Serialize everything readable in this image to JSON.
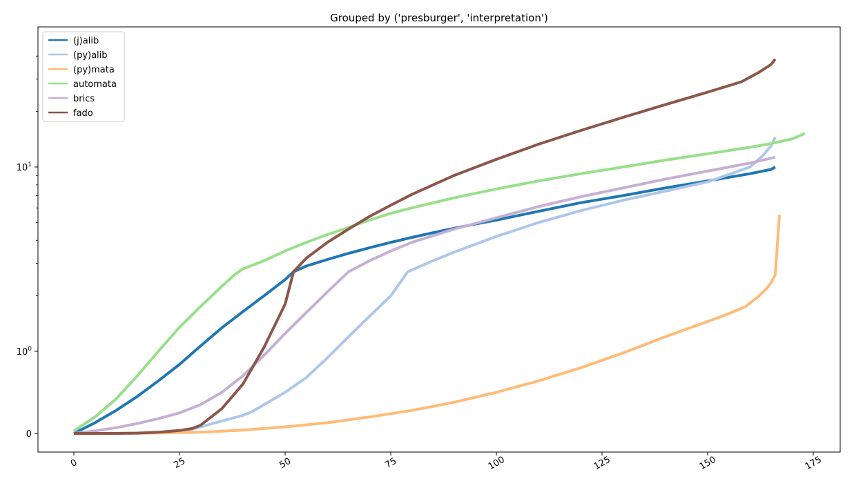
{
  "chart_data": {
    "type": "line",
    "title": "Grouped by ('presburger', 'interpretation')",
    "xlabel": "",
    "ylabel": "",
    "xlim": [
      -8.5,
      182
    ],
    "xticks": [
      0,
      25,
      50,
      75,
      100,
      125,
      150,
      175
    ],
    "yscale": "symlog",
    "yticks": [
      {
        "value": 0,
        "base": "0",
        "exp": ""
      },
      {
        "value": 1,
        "base": "10",
        "exp": "0"
      },
      {
        "value": 10,
        "base": "10",
        "exp": "1"
      }
    ],
    "grid": false,
    "legend_position": "top-left",
    "series": [
      {
        "name": "(j)alib",
        "color": "#1f77b4",
        "x": [
          0,
          5,
          10,
          15,
          20,
          25,
          30,
          35,
          40,
          45,
          50,
          52,
          55,
          60,
          65,
          70,
          75,
          80,
          85,
          90,
          95,
          100,
          110,
          120,
          130,
          140,
          150,
          160,
          165,
          166
        ],
        "y": [
          0,
          0.13,
          0.28,
          0.45,
          0.64,
          0.84,
          1.07,
          1.34,
          1.64,
          2.0,
          2.45,
          2.7,
          2.9,
          3.15,
          3.4,
          3.65,
          3.9,
          4.15,
          4.4,
          4.65,
          4.9,
          5.15,
          5.75,
          6.4,
          7.0,
          7.7,
          8.4,
          9.2,
          9.7,
          10.0
        ]
      },
      {
        "name": "(py)alib",
        "color": "#aec7e8",
        "x": [
          0,
          10,
          20,
          25,
          28,
          30,
          35,
          40,
          42,
          45,
          50,
          55,
          60,
          65,
          70,
          75,
          79,
          85,
          90,
          100,
          110,
          120,
          130,
          140,
          150,
          160,
          163,
          165,
          166
        ],
        "y": [
          0,
          0,
          0.01,
          0.03,
          0.05,
          0.08,
          0.15,
          0.22,
          0.26,
          0.35,
          0.5,
          0.68,
          0.92,
          1.2,
          1.55,
          2.0,
          2.7,
          3.1,
          3.45,
          4.2,
          5.0,
          5.8,
          6.6,
          7.4,
          8.3,
          10.0,
          11.5,
          13.0,
          14.5
        ]
      },
      {
        "name": "(py)mata",
        "color": "#ffbb78",
        "x": [
          0,
          10,
          20,
          30,
          40,
          50,
          60,
          70,
          80,
          90,
          100,
          110,
          120,
          130,
          140,
          150,
          155,
          159,
          162,
          164,
          165,
          166,
          167
        ],
        "y": [
          0,
          0,
          0.005,
          0.015,
          0.04,
          0.08,
          0.13,
          0.2,
          0.28,
          0.38,
          0.5,
          0.64,
          0.8,
          0.98,
          1.2,
          1.45,
          1.6,
          1.75,
          1.98,
          2.2,
          2.35,
          2.6,
          5.5
        ]
      },
      {
        "name": "automata",
        "color": "#98df8a",
        "x": [
          0,
          5,
          10,
          15,
          20,
          25,
          30,
          35,
          38,
          40,
          45,
          50,
          55,
          60,
          65,
          70,
          75,
          80,
          90,
          100,
          110,
          120,
          130,
          140,
          150,
          160,
          165,
          170,
          173
        ],
        "y": [
          0.03,
          0.2,
          0.42,
          0.7,
          1.0,
          1.35,
          1.75,
          2.25,
          2.6,
          2.8,
          3.1,
          3.5,
          3.9,
          4.3,
          4.7,
          5.15,
          5.6,
          6.0,
          6.8,
          7.6,
          8.4,
          9.2,
          10.0,
          10.9,
          11.8,
          12.8,
          13.4,
          14.2,
          15.2
        ]
      },
      {
        "name": "brics",
        "color": "#c5b0d5",
        "x": [
          0,
          5,
          10,
          15,
          20,
          25,
          30,
          35,
          40,
          45,
          50,
          55,
          60,
          65,
          70,
          75,
          80,
          90,
          100,
          110,
          120,
          130,
          140,
          150,
          160,
          166
        ],
        "y": [
          0,
          0.03,
          0.07,
          0.12,
          0.18,
          0.25,
          0.35,
          0.5,
          0.7,
          0.95,
          1.25,
          1.62,
          2.1,
          2.7,
          3.1,
          3.5,
          3.9,
          4.6,
          5.3,
          6.1,
          6.9,
          7.7,
          8.6,
          9.5,
          10.5,
          11.3
        ]
      },
      {
        "name": "fado",
        "color": "#8c564b",
        "x": [
          0,
          10,
          15,
          20,
          25,
          28,
          30,
          35,
          40,
          45,
          50,
          52,
          55,
          60,
          65,
          70,
          75,
          80,
          85,
          90,
          100,
          110,
          120,
          130,
          140,
          150,
          158,
          162,
          165,
          166
        ],
        "y": [
          0,
          0,
          0.003,
          0.015,
          0.035,
          0.06,
          0.1,
          0.3,
          0.6,
          1.05,
          1.8,
          2.7,
          3.2,
          3.9,
          4.6,
          5.4,
          6.2,
          7.1,
          8.0,
          9.0,
          11.0,
          13.3,
          15.8,
          18.6,
          21.8,
          25.5,
          29.0,
          32.5,
          36.0,
          38.5
        ]
      }
    ]
  }
}
